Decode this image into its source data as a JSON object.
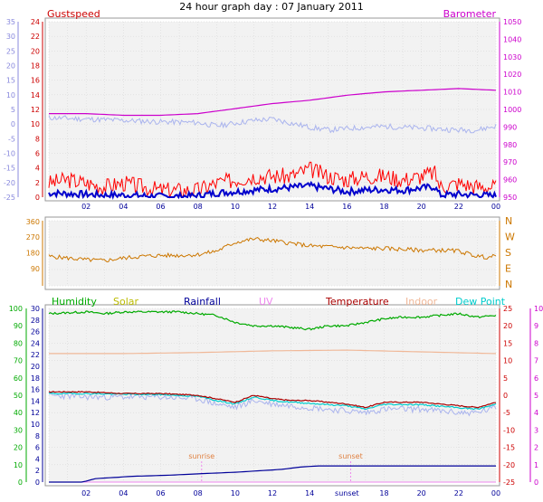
{
  "title": "24 hour graph day : 07 January 2011",
  "colors": {
    "gust": "#ff0000",
    "wind": "#0000cc",
    "baro": "#cc00cc",
    "temp_blue": "#aab4ee",
    "wind_dir": "#cc7700",
    "humidity": "#00aa00",
    "solar": "#cccc00",
    "rainfall": "#000099",
    "uv": "#ee88ee",
    "temperature": "#aa0000",
    "indoor": "#f0b898",
    "dewpoint": "#00cccc",
    "axis_left": "#8888dd",
    "axis_red": "#cc0000",
    "axis_magenta": "#cc00cc",
    "axis_green": "#00aa00",
    "axis_rain": "#000099",
    "axis_uv": "#cc00cc",
    "axis_dir": "#cc7700",
    "bg": "#f2f2f2",
    "grid": "#d4d4d4"
  },
  "x_ticks": [
    "02",
    "04",
    "06",
    "08",
    "10",
    "12",
    "14",
    "16",
    "18",
    "20",
    "22",
    "00"
  ],
  "sun": {
    "sunrise_label": "sunrise",
    "sunset_label": "sunset",
    "sunrise_hour": 8.2,
    "sunset_hour": 16.2
  },
  "chart_data": [
    {
      "type": "line",
      "panel": "top",
      "legend": [
        "Gustspeed",
        "Barometer"
      ],
      "x_range": [
        0,
        24
      ],
      "left_inner_ticks": [
        "24",
        "22",
        "20",
        "18",
        "16",
        "14",
        "12",
        "10",
        "8",
        "6",
        "4",
        "2",
        "0"
      ],
      "left_inner_range": [
        0,
        25
      ],
      "left_outer_ticks": [
        "35",
        "30",
        "25",
        "20",
        "15",
        "10",
        "5",
        "0",
        "-5",
        "-10",
        "-15",
        "-20",
        "-25"
      ],
      "left_outer_range": [
        -28,
        36
      ],
      "right_ticks": [
        "1050",
        "1040",
        "1030",
        "1020",
        "1010",
        "1000",
        "990",
        "980",
        "970",
        "960",
        "950"
      ],
      "right_range": [
        947,
        1052
      ],
      "series": [
        {
          "name": "Gustspeed",
          "axis": "left_inner",
          "noise": 1.2,
          "seed": 3,
          "x": [
            0,
            1,
            2,
            3,
            4,
            5,
            6,
            7,
            8,
            9,
            10,
            11,
            12,
            13,
            14,
            15,
            16,
            17,
            18,
            19,
            20,
            20.7,
            21,
            22,
            23,
            24
          ],
          "y": [
            2,
            2.5,
            2,
            1.5,
            2,
            1.5,
            1,
            1,
            1,
            2,
            2.5,
            3,
            3,
            3,
            4,
            3,
            2.5,
            3,
            3,
            2.5,
            3,
            3.5,
            1.5,
            2,
            1.5,
            1.5
          ]
        },
        {
          "axis": "left_inner",
          "noise": 0.5,
          "seed": 7,
          "x": [
            0,
            1,
            2,
            3,
            4,
            5,
            6,
            7,
            8,
            9,
            10,
            11,
            12,
            13,
            14,
            15,
            16,
            17,
            18,
            19,
            20,
            20.7,
            21,
            22,
            23,
            24
          ],
          "y": [
            0.6,
            0.5,
            0.4,
            0.3,
            0.3,
            0.2,
            0.1,
            0.1,
            0.2,
            0.6,
            0.8,
            1,
            1.2,
            1.4,
            1.6,
            1.2,
            0.8,
            1,
            1.1,
            1,
            1.3,
            1.5,
            0.3,
            0.4,
            0.3,
            0.2
          ]
        },
        {
          "axis": "left_outer",
          "noise": 1.0,
          "seed": 11,
          "x": [
            0,
            2,
            4,
            6,
            8,
            9,
            10,
            11,
            12,
            13,
            14,
            15,
            16,
            17,
            18,
            20,
            22,
            23,
            24
          ],
          "y": [
            1,
            0.5,
            0,
            -0.5,
            -0.8,
            -2,
            -1,
            0,
            0.5,
            -1,
            -2.5,
            -3.5,
            -3,
            -2.5,
            -2.2,
            -2.8,
            -3.5,
            -3.5,
            -2
          ]
        },
        {
          "name": "Barometer",
          "axis": "right",
          "noise": 0,
          "seed": 0,
          "x": [
            0,
            2,
            4,
            6,
            8,
            10,
            12,
            14,
            16,
            18,
            20,
            22,
            24
          ],
          "y": [
            997,
            997,
            996,
            996,
            997,
            1000,
            1003,
            1005,
            1008,
            1010,
            1011,
            1012,
            1011
          ]
        }
      ]
    },
    {
      "type": "line",
      "panel": "middle",
      "x_range": [
        0,
        24
      ],
      "left_ticks": [
        "360",
        "270",
        "180",
        "90"
      ],
      "left_range": [
        -10,
        365
      ],
      "right_labels": [
        "N",
        "W",
        "S",
        "E",
        "N"
      ],
      "series": [
        {
          "axis": "left",
          "noise": 12,
          "seed": 5,
          "x": [
            0,
            1,
            2,
            3,
            4,
            5,
            6,
            7,
            8,
            9,
            10,
            11,
            12,
            13,
            14,
            15,
            16,
            17,
            18,
            19,
            20,
            21,
            22,
            23,
            23.5,
            24
          ],
          "y": [
            160,
            150,
            140,
            135,
            150,
            160,
            165,
            165,
            170,
            190,
            240,
            260,
            250,
            235,
            220,
            215,
            210,
            205,
            205,
            200,
            195,
            195,
            190,
            160,
            155,
            160
          ]
        }
      ]
    },
    {
      "type": "line",
      "panel": "bottom",
      "legend": [
        "Humidity",
        "Solar",
        "Rainfall",
        "UV",
        "Temperature",
        "Indoor",
        "Dew Point"
      ],
      "x_range": [
        0,
        24
      ],
      "hum_ticks": [
        "100",
        "90",
        "80",
        "70",
        "60",
        "50",
        "40",
        "30",
        "20",
        "10",
        "0"
      ],
      "hum_range": [
        0,
        100
      ],
      "rain_ticks": [
        "30",
        "28",
        "26",
        "24",
        "22",
        "20",
        "18",
        "16",
        "14",
        "12",
        "10",
        "8",
        "6",
        "4",
        "2",
        "0"
      ],
      "rain_range": [
        0,
        30
      ],
      "temp_ticks": [
        "25",
        "20",
        "15",
        "10",
        "5",
        "0",
        "-5",
        "-10",
        "-15",
        "-20",
        "-25"
      ],
      "temp_range": [
        -25,
        25
      ],
      "uv_ticks": [
        "10",
        "9",
        "8",
        "7",
        "6",
        "5",
        "4",
        "3",
        "2",
        "1",
        "0"
      ],
      "uv_range": [
        0,
        10
      ],
      "series": [
        {
          "name": "Humidity",
          "axis": "hum",
          "noise": 0.6,
          "seed": 13,
          "x": [
            0,
            2,
            3,
            4,
            5,
            6,
            7,
            8,
            9,
            10,
            11,
            12,
            13,
            14,
            15,
            16,
            17,
            18,
            19,
            20,
            21,
            22,
            23,
            24
          ],
          "y": [
            97,
            98,
            97,
            98,
            98,
            98,
            98,
            97,
            96,
            92,
            90,
            90,
            89,
            88,
            90,
            90,
            92,
            94,
            95,
            95,
            96,
            97,
            95,
            96
          ]
        },
        {
          "name": "Indoor",
          "axis": "temp",
          "noise": 0,
          "seed": 0,
          "x": [
            0,
            4,
            8,
            12,
            16,
            20,
            24
          ],
          "y": [
            12,
            12,
            12.3,
            12.8,
            13,
            12.5,
            12
          ]
        },
        {
          "name": "Temperature",
          "axis": "temp",
          "noise": 0.15,
          "seed": 17,
          "x": [
            0,
            2,
            4,
            6,
            8,
            9,
            10,
            11,
            12,
            13,
            14,
            15,
            16,
            17,
            18,
            20,
            22,
            23,
            24
          ],
          "y": [
            1,
            1,
            0.5,
            0.5,
            0,
            -1,
            -2,
            0,
            -1,
            -1.5,
            -1.5,
            -2,
            -2.5,
            -3.5,
            -2,
            -2,
            -3,
            -3.5,
            -2
          ]
        },
        {
          "name": "Dew Point",
          "axis": "temp",
          "noise": 0.2,
          "seed": 19,
          "x": [
            0,
            2,
            4,
            6,
            8,
            9,
            10,
            11,
            12,
            13,
            14,
            15,
            16,
            17,
            18,
            20,
            22,
            23,
            24
          ],
          "y": [
            0.5,
            0.5,
            0.3,
            0.2,
            -0.3,
            -1.5,
            -2.5,
            -0.5,
            -1.5,
            -2,
            -2.3,
            -2.7,
            -3,
            -4,
            -2.6,
            -2.7,
            -3.6,
            -4,
            -2.6
          ]
        },
        {
          "axis": "temp",
          "noise": 0.9,
          "seed": 23,
          "x": [
            0,
            2,
            4,
            6,
            8,
            9,
            10,
            11,
            12,
            13,
            14,
            15,
            16,
            17,
            18,
            20,
            22,
            23,
            24
          ],
          "y": [
            0,
            -0.5,
            -0.5,
            -0.5,
            -1,
            -2.5,
            -3.5,
            -1.5,
            -2.5,
            -3,
            -3.5,
            -4,
            -4.5,
            -5,
            -4,
            -4,
            -5,
            -5,
            -3.5
          ]
        },
        {
          "name": "Rainfall",
          "axis": "rain",
          "noise": 0,
          "seed": 0,
          "x": [
            0,
            1.8,
            2.5,
            4.5,
            6.5,
            8.5,
            10,
            11.5,
            12.5,
            13.5,
            14.5,
            24
          ],
          "y": [
            0,
            0,
            0.6,
            1.0,
            1.2,
            1.5,
            1.7,
            2.0,
            2.2,
            2.6,
            2.8,
            2.8
          ]
        },
        {
          "name": "UV",
          "axis": "uv",
          "noise": 0,
          "seed": 0,
          "x": [
            0,
            24
          ],
          "y": [
            0,
            0
          ]
        }
      ]
    }
  ]
}
